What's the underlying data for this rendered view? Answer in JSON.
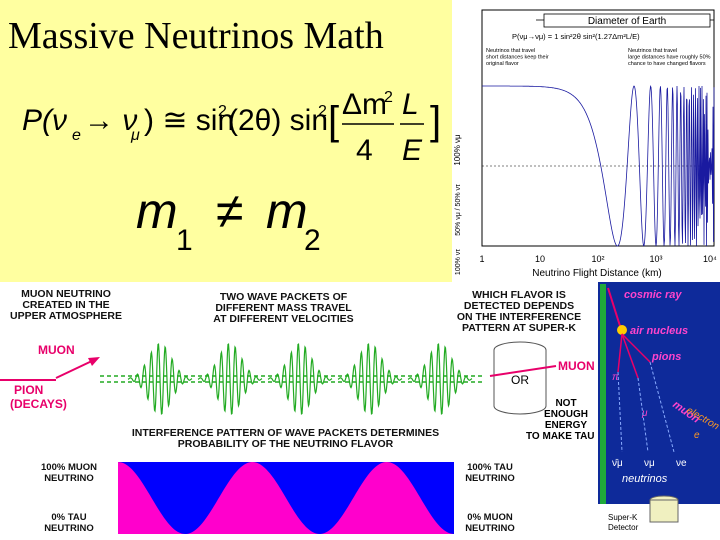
{
  "slide": {
    "title": "Massive Neutrinos Math",
    "formula": {
      "lhs": "P(ν",
      "sub_e": "e",
      "arrow": "→ ν",
      "sub_mu": "μ",
      "rhs": ") ≅ sin",
      "sq": "2",
      "theta": "(2θ) sin",
      "dm": "Δm",
      "four": "4",
      "L": "L",
      "E": "E",
      "lb": "[",
      "rb": "]"
    },
    "mass": {
      "m": "m",
      "one": "1",
      "neq": "≠",
      "two": "2"
    }
  },
  "osc_plot": {
    "banner": "Diameter of Earth",
    "eq": "P(νμ→νμ) = 1 sin²2θ sin²(1.27Δm²L/E)",
    "note_left": "Neutrinos that travel\nshort distances keep their\noriginal flavor",
    "note_right": "Neutrinos that travel\nlarge distances have roughly 50%\nchance to have changed flavors",
    "ylabels": [
      "100% νμ",
      "50% νμ / 50% ντ",
      "100% ντ"
    ],
    "xticks": [
      "1",
      "10",
      "10²",
      "10³",
      "10⁴"
    ],
    "xlabel": "Neutrino Flight Distance (km)"
  },
  "wave_diagram": {
    "cap_left": "MUON NEUTRINO\nCREATED IN THE\nUPPER ATMOSPHERE",
    "cap_mid": "TWO WAVE PACKETS OF\nDIFFERENT MASS TRAVEL\nAT DIFFERENT VELOCITIES",
    "cap_right": "WHICH FLAVOR IS\nDETECTED DEPENDS\nON THE INTERFERENCE\nPATTERN AT SUPER-K",
    "muon_left": "MUON",
    "pion": "PION\n(DECAYS)",
    "muon_right": "MUON",
    "or": "OR",
    "not_enough": "NOT\nENOUGH\nENERGY\nTO MAKE TAU",
    "cap_bottom": "INTERFERENCE PATTERN OF WAVE PACKETS DETERMINES\nPROBABILITY OF THE NEUTRINO FLAVOR",
    "left_top": "100% MUON\nNEUTRINO",
    "left_bottom": "0% TAU\nNEUTRINO",
    "right_top": "100% TAU\nNEUTRINO",
    "right_bottom": "0% MUON\nNEUTRINO"
  },
  "cosmic": {
    "cosmic_ray": "cosmic ray",
    "air_nucleus": "air nucleus",
    "pions": "pions",
    "pi": "π",
    "muon": "muon",
    "mu": "μ",
    "electron": "electron",
    "e": "e",
    "numu_bar": "ν̄μ",
    "numu": "νμ",
    "nue": "νe",
    "neutrinos": "neutrinos",
    "detector": "Super-K\nDetector"
  },
  "colors": {
    "panel_yellow": "#ffffa0",
    "magenta": "#ff00cc",
    "blue": "#0000ff",
    "green": "#22aa22",
    "cosmic_bg": "#0e2a9a"
  }
}
